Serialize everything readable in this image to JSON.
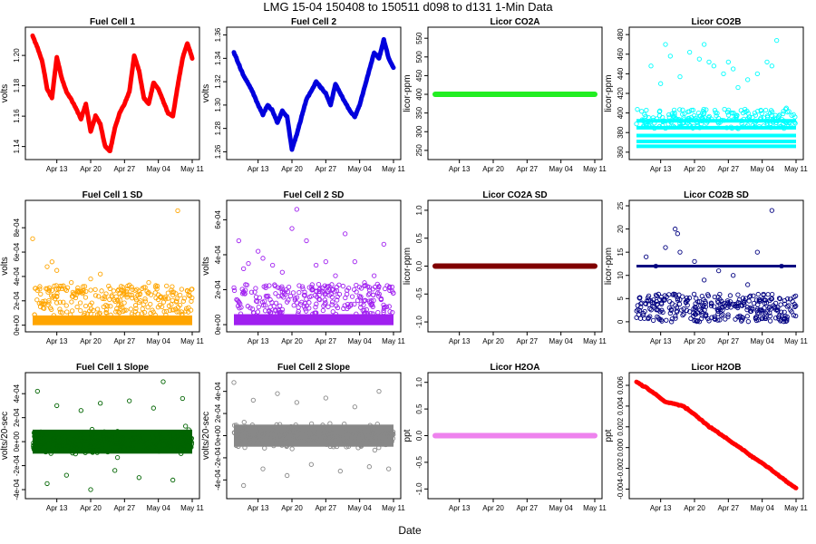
{
  "figure": {
    "title": "LMG   15-04     150408 to 150511     d098 to d131    1-Min Data",
    "xlabel": "Date"
  },
  "chart_data": [
    {
      "type": "line",
      "title": "Fuel Cell 1",
      "ylabel": "volts",
      "color": "#ff0000",
      "x_ticks": [
        "Apr 13",
        "Apr 20",
        "Apr 27",
        "May 04",
        "May 11"
      ],
      "y_ticks": [
        "1.14",
        "1.16",
        "1.18",
        "1.20"
      ],
      "ylim": [
        1.135,
        1.215
      ],
      "x": [
        0,
        1,
        2,
        3,
        4,
        5,
        6,
        7,
        8,
        9,
        10,
        11,
        12,
        13,
        14,
        15,
        16,
        17,
        18,
        19,
        20,
        21,
        22,
        23,
        24,
        25,
        26,
        27,
        28,
        29,
        30,
        31,
        32,
        33
      ],
      "values": [
        1.213,
        1.205,
        1.196,
        1.178,
        1.172,
        1.199,
        1.185,
        1.176,
        1.171,
        1.165,
        1.158,
        1.168,
        1.15,
        1.16,
        1.155,
        1.14,
        1.137,
        1.152,
        1.162,
        1.168,
        1.176,
        1.2,
        1.19,
        1.172,
        1.168,
        1.182,
        1.178,
        1.17,
        1.162,
        1.16,
        1.18,
        1.198,
        1.208,
        1.198
      ]
    },
    {
      "type": "line",
      "title": "Fuel Cell 2",
      "ylabel": "volts",
      "color": "#0000dd",
      "x_ticks": [
        "Apr 13",
        "Apr 20",
        "Apr 27",
        "May 04",
        "May 11"
      ],
      "y_ticks": [
        "1.26",
        "1.28",
        "1.30",
        "1.32",
        "1.34",
        "1.36"
      ],
      "ylim": [
        1.258,
        1.362
      ],
      "x": [
        0,
        1,
        2,
        3,
        4,
        5,
        6,
        7,
        8,
        9,
        10,
        11,
        12,
        13,
        14,
        15,
        16,
        17,
        18,
        19,
        20,
        21,
        22,
        23,
        24,
        25,
        26,
        27,
        28,
        29,
        30,
        31,
        32,
        33
      ],
      "values": [
        1.345,
        1.335,
        1.325,
        1.318,
        1.31,
        1.3,
        1.292,
        1.3,
        1.295,
        1.285,
        1.295,
        1.29,
        1.262,
        1.275,
        1.29,
        1.305,
        1.312,
        1.32,
        1.315,
        1.31,
        1.3,
        1.318,
        1.31,
        1.302,
        1.295,
        1.29,
        1.3,
        1.315,
        1.33,
        1.345,
        1.34,
        1.356,
        1.34,
        1.332
      ]
    },
    {
      "type": "line",
      "title": "Licor CO2A",
      "ylabel": "licor-ppm",
      "color": "#22ee22",
      "x_ticks": [
        "Apr 13",
        "Apr 20",
        "Apr 27",
        "May 04",
        "May 11"
      ],
      "y_ticks": [
        "250",
        "300",
        "350",
        "400",
        "450",
        "500",
        "550"
      ],
      "ylim": [
        240,
        565
      ],
      "x": [
        0,
        33
      ],
      "values": [
        400,
        400
      ]
    },
    {
      "type": "scatter",
      "title": "Licor CO2B",
      "ylabel": "licor-ppm",
      "color": "#00ffff",
      "x_ticks": [
        "Apr 13",
        "Apr 20",
        "Apr 27",
        "May 04",
        "May 11"
      ],
      "y_ticks": [
        "360",
        "380",
        "400",
        "420",
        "440",
        "460",
        "480"
      ],
      "ylim": [
        358,
        482
      ],
      "baseline_levels": [
        366,
        371,
        377,
        385,
        392
      ],
      "spikes": [
        {
          "x": 3,
          "y": 448
        },
        {
          "x": 5,
          "y": 430
        },
        {
          "x": 6,
          "y": 470
        },
        {
          "x": 7,
          "y": 458
        },
        {
          "x": 9,
          "y": 437
        },
        {
          "x": 11,
          "y": 462
        },
        {
          "x": 13,
          "y": 455
        },
        {
          "x": 14,
          "y": 470
        },
        {
          "x": 15,
          "y": 452
        },
        {
          "x": 16,
          "y": 448
        },
        {
          "x": 18,
          "y": 440
        },
        {
          "x": 19,
          "y": 452
        },
        {
          "x": 20,
          "y": 445
        },
        {
          "x": 21,
          "y": 426
        },
        {
          "x": 23,
          "y": 434
        },
        {
          "x": 25,
          "y": 440
        },
        {
          "x": 27,
          "y": 452
        },
        {
          "x": 28,
          "y": 448
        },
        {
          "x": 29,
          "y": 474
        },
        {
          "x": 31,
          "y": 405
        }
      ]
    },
    {
      "type": "scatter",
      "title": "Fuel Cell 1 SD",
      "ylabel": "volts",
      "color": "#ffa500",
      "x_ticks": [
        "Apr 13",
        "Apr 20",
        "Apr 27",
        "May 04",
        "May 11"
      ],
      "y_ticks": [
        "0e+00",
        "2e-04",
        "4e-04",
        "6e-04",
        "8e-04"
      ],
      "ylim": [
        -1e-05,
        0.00098
      ],
      "baseline": 8e-05,
      "spikes": [
        {
          "x": 0,
          "y": 0.00071
        },
        {
          "x": 3,
          "y": 0.00048
        },
        {
          "x": 4,
          "y": 0.00052
        },
        {
          "x": 5,
          "y": 0.00045
        },
        {
          "x": 6,
          "y": 0.00032
        },
        {
          "x": 8,
          "y": 0.00035
        },
        {
          "x": 10,
          "y": 0.00028
        },
        {
          "x": 12,
          "y": 0.00038
        },
        {
          "x": 14,
          "y": 0.00042
        },
        {
          "x": 16,
          "y": 0.0003
        },
        {
          "x": 18,
          "y": 0.00026
        },
        {
          "x": 20,
          "y": 0.00033
        },
        {
          "x": 22,
          "y": 0.00028
        },
        {
          "x": 24,
          "y": 0.00035
        },
        {
          "x": 26,
          "y": 0.00025
        },
        {
          "x": 28,
          "y": 0.00022
        },
        {
          "x": 30,
          "y": 0.00094
        },
        {
          "x": 32,
          "y": 0.00028
        }
      ]
    },
    {
      "type": "scatter",
      "title": "Fuel Cell 2 SD",
      "ylabel": "volts",
      "color": "#a020f0",
      "x_ticks": [
        "Apr 13",
        "Apr 20",
        "Apr 27",
        "May 04",
        "May 11"
      ],
      "y_ticks": [
        "0e+00",
        "2e-04",
        "4e-04",
        "6e-04"
      ],
      "ylim": [
        -1e-05,
        0.00068
      ],
      "baseline": 6e-05,
      "spikes": [
        {
          "x": 1,
          "y": 0.00048
        },
        {
          "x": 2,
          "y": 0.00032
        },
        {
          "x": 3,
          "y": 0.00035
        },
        {
          "x": 5,
          "y": 0.00042
        },
        {
          "x": 6,
          "y": 0.00038
        },
        {
          "x": 8,
          "y": 0.00034
        },
        {
          "x": 10,
          "y": 0.0003
        },
        {
          "x": 12,
          "y": 0.00055
        },
        {
          "x": 13,
          "y": 0.00066
        },
        {
          "x": 15,
          "y": 0.00048
        },
        {
          "x": 17,
          "y": 0.00034
        },
        {
          "x": 19,
          "y": 0.00036
        },
        {
          "x": 21,
          "y": 0.00028
        },
        {
          "x": 23,
          "y": 0.00052
        },
        {
          "x": 25,
          "y": 0.00036
        },
        {
          "x": 27,
          "y": 0.00024
        },
        {
          "x": 29,
          "y": 0.00028
        },
        {
          "x": 31,
          "y": 0.00046
        }
      ]
    },
    {
      "type": "line",
      "title": "Licor CO2A SD",
      "ylabel": "licor-ppm",
      "color": "#800000",
      "x_ticks": [
        "Apr 13",
        "Apr 20",
        "Apr 27",
        "May 04",
        "May 11"
      ],
      "y_ticks": [
        "-1.0",
        "-0.5",
        "0.0",
        "0.5",
        "1.0"
      ],
      "ylim": [
        -1.08,
        1.08
      ],
      "x": [
        0,
        33
      ],
      "values": [
        0,
        0
      ]
    },
    {
      "type": "scatter",
      "title": "Licor CO2B SD",
      "ylabel": "licor-ppm",
      "color": "#000080",
      "x_ticks": [
        "Apr 13",
        "Apr 20",
        "Apr 27",
        "May 04",
        "May 11"
      ],
      "y_ticks": [
        "0",
        "5",
        "10",
        "15",
        "20",
        "25"
      ],
      "ylim": [
        -1,
        25
      ],
      "band_level": 12,
      "spikes": [
        {
          "x": 2,
          "y": 14
        },
        {
          "x": 4,
          "y": 12
        },
        {
          "x": 6,
          "y": 16
        },
        {
          "x": 8,
          "y": 20
        },
        {
          "x": 8.5,
          "y": 19
        },
        {
          "x": 9,
          "y": 15
        },
        {
          "x": 12,
          "y": 13
        },
        {
          "x": 14,
          "y": 9
        },
        {
          "x": 17,
          "y": 11
        },
        {
          "x": 20,
          "y": 10
        },
        {
          "x": 23,
          "y": 8
        },
        {
          "x": 25,
          "y": 15
        },
        {
          "x": 28,
          "y": 24
        },
        {
          "x": 30,
          "y": 12
        }
      ]
    },
    {
      "type": "scatter",
      "title": "Fuel Cell 1 Slope",
      "ylabel": "volts/20-sec",
      "color": "#006400",
      "x_ticks": [
        "Apr 13",
        "Apr 20",
        "Apr 27",
        "May 04",
        "May 11"
      ],
      "y_ticks": [
        "-4e-04",
        "-2e-04",
        "0e+00",
        "2e-04",
        "4e-04"
      ],
      "ylim": [
        -0.00043,
        0.00053
      ],
      "band": [
        -0.0001,
        0.0001
      ],
      "spikes": [
        {
          "x": 1,
          "y": 0.00042
        },
        {
          "x": 3,
          "y": -0.00035
        },
        {
          "x": 5,
          "y": 0.0003
        },
        {
          "x": 7,
          "y": -0.00028
        },
        {
          "x": 10,
          "y": 0.00026
        },
        {
          "x": 12,
          "y": -0.0004
        },
        {
          "x": 14,
          "y": 0.00032
        },
        {
          "x": 17,
          "y": -0.00024
        },
        {
          "x": 20,
          "y": 0.00034
        },
        {
          "x": 22,
          "y": -0.0003
        },
        {
          "x": 25,
          "y": 0.00028
        },
        {
          "x": 27,
          "y": 0.0005
        },
        {
          "x": 29,
          "y": -0.00032
        },
        {
          "x": 31,
          "y": 0.00036
        }
      ]
    },
    {
      "type": "scatter",
      "title": "Fuel Cell 2 Slope",
      "ylabel": "volts/20-sec",
      "color": "#888888",
      "x_ticks": [
        "Apr 13",
        "Apr 20",
        "Apr 27",
        "May 04",
        "May 11"
      ],
      "y_ticks": [
        "-4e-04",
        "-2e-04",
        "0e+00",
        "2e-04",
        "4e-04"
      ],
      "ylim": [
        -0.00052,
        0.00052
      ],
      "band": [
        -0.0001,
        0.0001
      ],
      "spikes": [
        {
          "x": 0,
          "y": 0.00048
        },
        {
          "x": 2,
          "y": -0.00045
        },
        {
          "x": 4,
          "y": 0.00032
        },
        {
          "x": 6,
          "y": -0.0003
        },
        {
          "x": 9,
          "y": 0.00038
        },
        {
          "x": 11,
          "y": -0.00036
        },
        {
          "x": 13,
          "y": 0.0003
        },
        {
          "x": 16,
          "y": -0.00026
        },
        {
          "x": 19,
          "y": 0.00034
        },
        {
          "x": 22,
          "y": -0.00032
        },
        {
          "x": 25,
          "y": 0.00026
        },
        {
          "x": 28,
          "y": -0.00028
        },
        {
          "x": 30,
          "y": 0.0004
        },
        {
          "x": 32,
          "y": -0.0003
        }
      ]
    },
    {
      "type": "line",
      "title": "Licor H2OA",
      "ylabel": "ppt",
      "color": "#ee82ee",
      "x_ticks": [
        "Apr 13",
        "Apr 20",
        "Apr 27",
        "May 04",
        "May 11"
      ],
      "y_ticks": [
        "-1.0",
        "-0.5",
        "0.0",
        "0.5",
        "1.0"
      ],
      "ylim": [
        -1.08,
        1.08
      ],
      "x": [
        0,
        33
      ],
      "values": [
        0,
        0
      ]
    },
    {
      "type": "line",
      "title": "Licor H2OB",
      "ylabel": "ppt",
      "color": "#ff0000",
      "x_ticks": [
        "Apr 13",
        "Apr 20",
        "Apr 27",
        "May 04",
        "May 11"
      ],
      "y_ticks": [
        "-0.004",
        "-0.002",
        "0.000",
        "0.002",
        "0.004",
        "0.006"
      ],
      "ylim": [
        -0.0044,
        0.0067
      ],
      "x": [
        0,
        2,
        4,
        6,
        8,
        10,
        12,
        14,
        16,
        18,
        20,
        22,
        24,
        26,
        28,
        30,
        32,
        33
      ],
      "values": [
        0.0063,
        0.0058,
        0.0051,
        0.0044,
        0.0042,
        0.0039,
        0.0032,
        0.0024,
        0.0017,
        0.0011,
        0.0004,
        -0.0002,
        -0.0009,
        -0.0015,
        -0.0022,
        -0.0029,
        -0.0036,
        -0.0039
      ]
    }
  ]
}
